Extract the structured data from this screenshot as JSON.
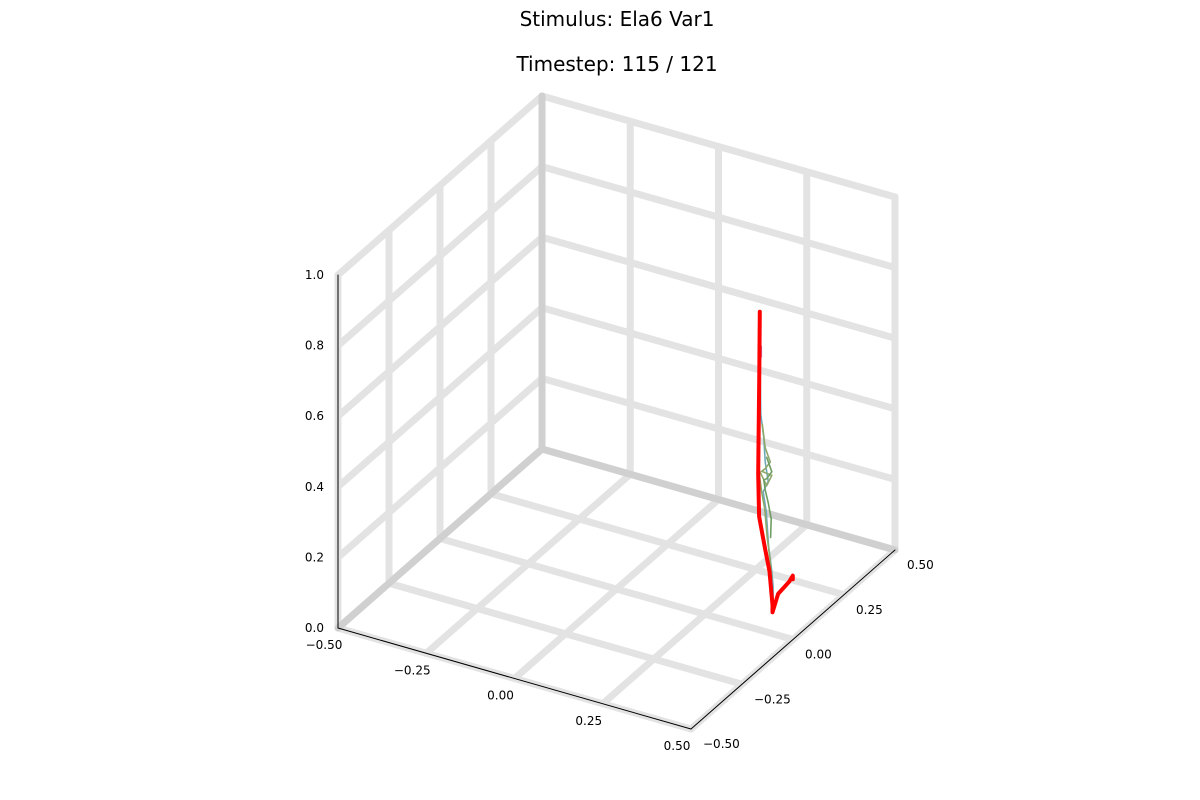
{
  "chart_data": {
    "type": "line3d",
    "title": "Stimulus: Ela6 Var1",
    "subtitle": "Timestep: 115 / 121",
    "xlim": [
      -0.5,
      0.5
    ],
    "ylim": [
      -0.5,
      0.5
    ],
    "zlim": [
      0.0,
      1.0
    ],
    "xticks": [
      "-0.50",
      "-0.25",
      "0.00",
      "0.25",
      "0.50"
    ],
    "yticks": [
      "-0.50",
      "-0.25",
      "0.00",
      "0.25",
      "0.50"
    ],
    "zticks": [
      "0.0",
      "0.2",
      "0.4",
      "0.6",
      "0.8",
      "1.0"
    ],
    "grid": true,
    "legend": "none",
    "series": [
      {
        "color": "#ff0000",
        "points": [
          [
            0.25,
            0.27,
            0.72
          ],
          [
            0.26,
            0.25,
            0.56
          ],
          [
            0.27,
            0.23,
            0.42
          ],
          [
            0.28,
            0.21,
            0.3
          ],
          [
            0.3,
            0.18,
            0.2
          ],
          [
            0.34,
            0.14,
            0.14
          ],
          [
            0.37,
            0.11,
            0.1
          ],
          [
            0.38,
            0.1,
            0.06
          ],
          [
            0.39,
            0.09,
            0.02
          ],
          [
            0.39,
            0.09,
            0.0
          ],
          [
            0.4,
            0.1,
            0.05
          ],
          [
            0.42,
            0.12,
            0.08
          ],
          [
            0.43,
            0.12,
            0.1
          ],
          [
            0.43,
            0.12,
            0.09
          ]
        ]
      },
      {
        "color": "#6fa8b8",
        "points": [
          [
            0.25,
            0.27,
            0.62
          ],
          [
            0.27,
            0.24,
            0.45
          ],
          [
            0.29,
            0.22,
            0.4
          ],
          [
            0.3,
            0.21,
            0.34
          ],
          [
            0.32,
            0.19,
            0.3
          ],
          [
            0.3,
            0.2,
            0.26
          ],
          [
            0.32,
            0.18,
            0.22
          ],
          [
            0.35,
            0.14,
            0.15
          ],
          [
            0.37,
            0.12,
            0.1
          ],
          [
            0.38,
            0.11,
            0.06
          ],
          [
            0.38,
            0.11,
            0.02
          ]
        ]
      },
      {
        "color": "#8fa86a",
        "points": [
          [
            0.28,
            0.23,
            0.43
          ],
          [
            0.3,
            0.21,
            0.38
          ],
          [
            0.32,
            0.2,
            0.35
          ],
          [
            0.3,
            0.21,
            0.32
          ],
          [
            0.29,
            0.21,
            0.31
          ],
          [
            0.33,
            0.19,
            0.32
          ],
          [
            0.31,
            0.2,
            0.28
          ],
          [
            0.27,
            0.23,
            0.3
          ],
          [
            0.29,
            0.21,
            0.25
          ],
          [
            0.31,
            0.19,
            0.22
          ],
          [
            0.34,
            0.15,
            0.17
          ],
          [
            0.36,
            0.13,
            0.12
          ],
          [
            0.37,
            0.12,
            0.08
          ],
          [
            0.37,
            0.12,
            0.04
          ]
        ]
      },
      {
        "color": "#6e9e62",
        "points": [
          [
            0.31,
            0.2,
            0.36
          ],
          [
            0.33,
            0.19,
            0.33
          ],
          [
            0.31,
            0.2,
            0.3
          ],
          [
            0.29,
            0.22,
            0.28
          ],
          [
            0.3,
            0.21,
            0.26
          ],
          [
            0.32,
            0.19,
            0.24
          ],
          [
            0.34,
            0.17,
            0.21
          ],
          [
            0.35,
            0.15,
            0.17
          ]
        ]
      },
      {
        "color": "#c77ab8",
        "points": [
          [
            0.26,
            0.26,
            0.63
          ],
          [
            0.26,
            0.26,
            0.6
          ]
        ]
      }
    ]
  }
}
